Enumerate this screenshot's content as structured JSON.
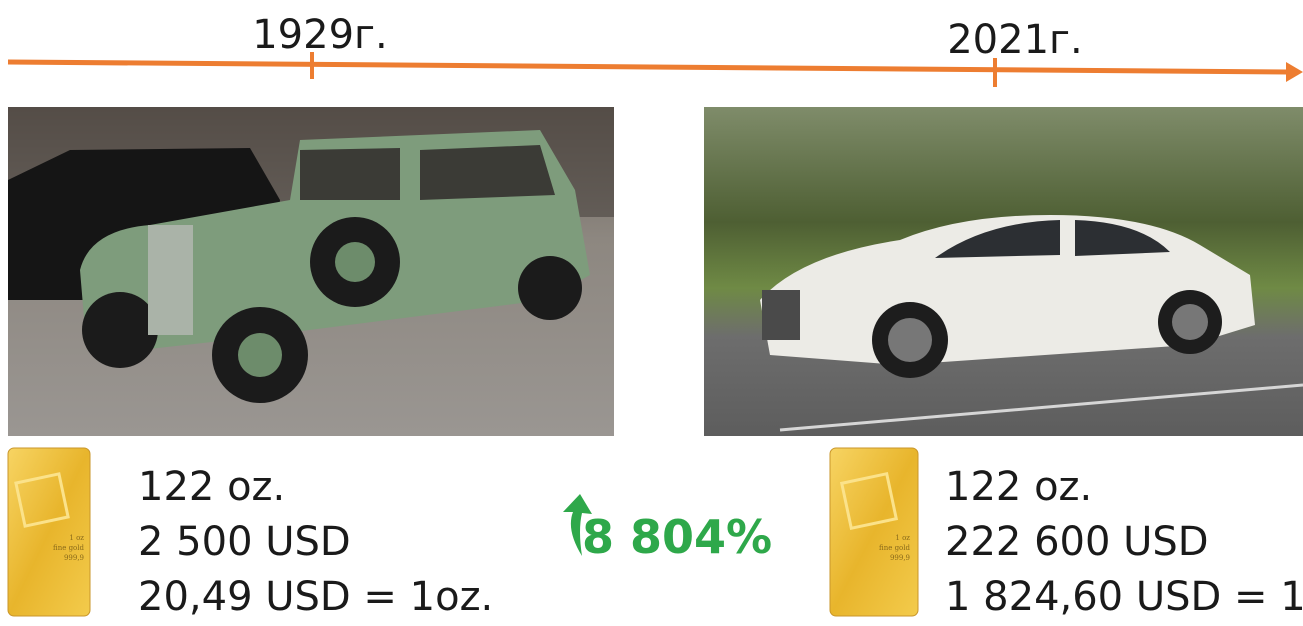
{
  "timeline": {
    "left_label": "1929г.",
    "right_label": "2021г."
  },
  "left": {
    "lines": [
      "122 oz.",
      "2 500 USD",
      "20,49 USD = 1oz."
    ]
  },
  "right": {
    "lines": [
      "122 oz.",
      "222 600 USD",
      "1 824,60 USD = 1"
    ]
  },
  "change": "8 804%",
  "gold_bar": {
    "lines": [
      "1 oz",
      "fine gold",
      "999,9"
    ]
  }
}
